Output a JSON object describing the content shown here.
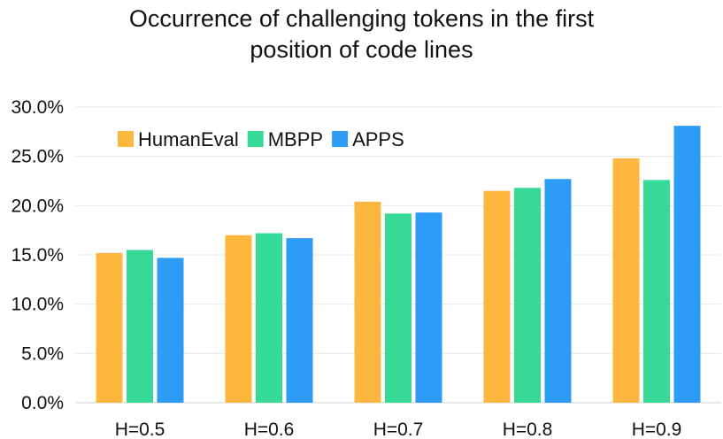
{
  "chart_data": {
    "type": "bar",
    "title": "Occurrence of challenging tokens in the first position of code lines",
    "title_lines": [
      "Occurrence of challenging tokens in the first",
      "position of code lines"
    ],
    "categories": [
      "H=0.5",
      "H=0.6",
      "H=0.7",
      "H=0.8",
      "H=0.9"
    ],
    "series": [
      {
        "name": "HumanEval",
        "color": "#FDB73E",
        "values": [
          15.2,
          17.0,
          20.4,
          21.5,
          24.8
        ]
      },
      {
        "name": "MBPP",
        "color": "#36D996",
        "values": [
          15.5,
          17.2,
          19.2,
          21.8,
          22.6
        ]
      },
      {
        "name": "APPS",
        "color": "#2D9CF6",
        "values": [
          14.7,
          16.7,
          19.3,
          22.7,
          28.1
        ]
      }
    ],
    "y_ticks": [
      "0.0%",
      "5.0%",
      "10.0%",
      "15.0%",
      "20.0%",
      "25.0%",
      "30.0%"
    ],
    "ylim": [
      0,
      30
    ],
    "grid": true,
    "legend_position": "top-left"
  }
}
